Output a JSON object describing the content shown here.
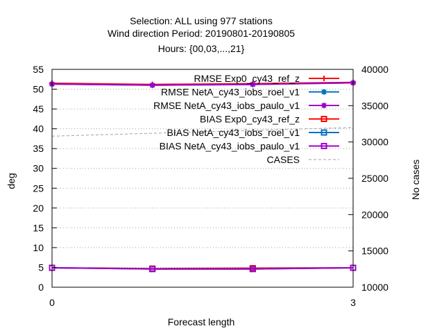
{
  "chart_data": {
    "type": "line",
    "title": [
      "Selection: ALL using   977 stations",
      "Wind direction   Period: 20190801-20190805",
      "Hours: {00,03,...,21}"
    ],
    "xlabel": "Forecast length",
    "ylabel": "deg",
    "y2label": "No cases",
    "x_ticks": [
      0,
      3
    ],
    "y_ticks": [
      0,
      5,
      10,
      15,
      20,
      25,
      30,
      35,
      40,
      45,
      50,
      55
    ],
    "y2_ticks": [
      10000,
      15000,
      20000,
      25000,
      30000,
      35000,
      40000
    ],
    "xlim": [
      0,
      3
    ],
    "ylim": [
      0,
      55
    ],
    "y2lim": [
      10000,
      40000
    ],
    "grid": true,
    "legend_position": "top-right",
    "series": [
      {
        "name": "RMSE Exp0_cy43_ref_z",
        "axis": "y",
        "color": "#ff0000",
        "marker": "plus",
        "x": [
          0,
          1,
          2,
          3
        ],
        "values": [
          51.5,
          51.2,
          51.4,
          51.7
        ]
      },
      {
        "name": "RMSE NetA_cy43_iobs_roel_v1",
        "axis": "y",
        "color": "#0072bd",
        "marker": "star",
        "x": [
          0,
          1,
          2,
          3
        ],
        "values": [
          51.3,
          51.0,
          51.2,
          51.6
        ]
      },
      {
        "name": "RMSE NetA_cy43_iobs_paulo_v1",
        "axis": "y",
        "color": "#a000c8",
        "marker": "star",
        "x": [
          0,
          1,
          2,
          3
        ],
        "values": [
          51.3,
          51.0,
          51.2,
          51.6
        ]
      },
      {
        "name": "BIAS Exp0_cy43_ref_z",
        "axis": "y",
        "color": "#ff0000",
        "marker": "square",
        "x": [
          0,
          1,
          2,
          3
        ],
        "values": [
          4.9,
          4.7,
          4.8,
          4.9
        ]
      },
      {
        "name": "BIAS NetA_cy43_iobs_roel_v1",
        "axis": "y",
        "color": "#0072bd",
        "marker": "square",
        "x": [
          0,
          1,
          2,
          3
        ],
        "values": [
          4.9,
          4.6,
          4.6,
          4.9
        ]
      },
      {
        "name": "BIAS NetA_cy43_iobs_paulo_v1",
        "axis": "y",
        "color": "#a000c8",
        "marker": "square",
        "x": [
          0,
          1,
          2,
          3
        ],
        "values": [
          4.9,
          4.6,
          4.6,
          4.9
        ]
      },
      {
        "name": "CASES",
        "axis": "y2",
        "color": "#a0a0a0",
        "marker": "none",
        "dashed": true,
        "x": [
          0,
          1,
          2,
          3
        ],
        "values": [
          30800,
          31200,
          31600,
          32000
        ]
      }
    ]
  }
}
